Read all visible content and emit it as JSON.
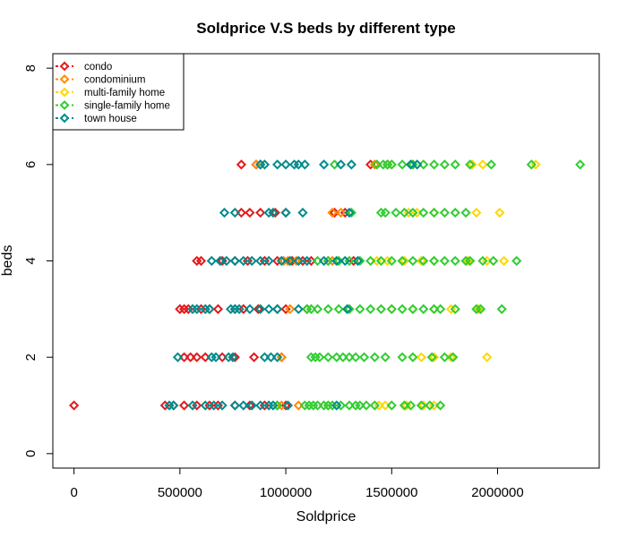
{
  "chart_data": {
    "type": "scatter",
    "title": "Soldprice V.S beds by different type",
    "xlabel": "Soldprice",
    "ylabel": "beds",
    "xlim": [
      -100000,
      2480000
    ],
    "ylim": [
      -0.3,
      8.3
    ],
    "x_ticks": [
      0,
      500000,
      1000000,
      1500000,
      2000000
    ],
    "x_tick_labels": [
      "0",
      "500000",
      "1000000",
      "1500000",
      "2000000"
    ],
    "y_ticks": [
      0,
      2,
      4,
      6,
      8
    ],
    "y_tick_labels": [
      "0",
      "2",
      "4",
      "6",
      "8"
    ],
    "grid": false,
    "legend_position": "top-left",
    "marker": "diamond-open",
    "series": [
      {
        "name": "condo",
        "color": "#e31a1c",
        "points": [
          [
            0,
            1
          ],
          [
            430000,
            1
          ],
          [
            470000,
            1
          ],
          [
            520000,
            1
          ],
          [
            580000,
            1
          ],
          [
            640000,
            1
          ],
          [
            680000,
            1
          ],
          [
            760000,
            1
          ],
          [
            830000,
            1
          ],
          [
            900000,
            1
          ],
          [
            960000,
            1
          ],
          [
            1000000,
            1
          ],
          [
            520000,
            2
          ],
          [
            550000,
            2
          ],
          [
            580000,
            2
          ],
          [
            620000,
            2
          ],
          [
            700000,
            2
          ],
          [
            760000,
            2
          ],
          [
            850000,
            2
          ],
          [
            980000,
            2
          ],
          [
            500000,
            3
          ],
          [
            520000,
            3
          ],
          [
            540000,
            3
          ],
          [
            600000,
            3
          ],
          [
            640000,
            3
          ],
          [
            680000,
            3
          ],
          [
            760000,
            3
          ],
          [
            800000,
            3
          ],
          [
            870000,
            3
          ],
          [
            960000,
            3
          ],
          [
            1000000,
            3
          ],
          [
            1100000,
            3
          ],
          [
            580000,
            4
          ],
          [
            600000,
            4
          ],
          [
            700000,
            4
          ],
          [
            760000,
            4
          ],
          [
            820000,
            4
          ],
          [
            900000,
            4
          ],
          [
            960000,
            4
          ],
          [
            1030000,
            4
          ],
          [
            1080000,
            4
          ],
          [
            1120000,
            4
          ],
          [
            1200000,
            4
          ],
          [
            1320000,
            4
          ],
          [
            790000,
            5
          ],
          [
            830000,
            5
          ],
          [
            880000,
            5
          ],
          [
            950000,
            5
          ],
          [
            1000000,
            5
          ],
          [
            1230000,
            5
          ],
          [
            1280000,
            5
          ],
          [
            790000,
            6
          ],
          [
            860000,
            6
          ],
          [
            880000,
            6
          ],
          [
            1400000,
            6
          ],
          [
            1480000,
            6
          ]
        ]
      },
      {
        "name": "condominium",
        "color": "#ff8c00",
        "points": [
          [
            980000,
            1
          ],
          [
            1060000,
            1
          ],
          [
            980000,
            2
          ],
          [
            1020000,
            3
          ],
          [
            990000,
            4
          ],
          [
            1010000,
            4
          ],
          [
            1050000,
            4
          ],
          [
            1220000,
            4
          ],
          [
            1220000,
            5
          ],
          [
            1260000,
            5
          ],
          [
            860000,
            6
          ],
          [
            880000,
            6
          ],
          [
            1420000,
            6
          ]
        ]
      },
      {
        "name": "multi-family home",
        "color": "#ffd700",
        "points": [
          [
            1200000,
            1
          ],
          [
            1440000,
            1
          ],
          [
            1470000,
            1
          ],
          [
            1570000,
            1
          ],
          [
            1650000,
            1
          ],
          [
            1700000,
            1
          ],
          [
            1600000,
            2
          ],
          [
            1640000,
            2
          ],
          [
            1700000,
            2
          ],
          [
            1780000,
            2
          ],
          [
            1950000,
            2
          ],
          [
            1500000,
            3
          ],
          [
            1600000,
            3
          ],
          [
            1700000,
            3
          ],
          [
            1780000,
            3
          ],
          [
            1910000,
            3
          ],
          [
            1430000,
            4
          ],
          [
            1480000,
            4
          ],
          [
            1560000,
            4
          ],
          [
            1640000,
            4
          ],
          [
            1700000,
            4
          ],
          [
            1860000,
            4
          ],
          [
            1950000,
            4
          ],
          [
            2030000,
            4
          ],
          [
            1580000,
            5
          ],
          [
            1620000,
            5
          ],
          [
            1700000,
            5
          ],
          [
            1900000,
            5
          ],
          [
            2010000,
            5
          ],
          [
            1500000,
            6
          ],
          [
            1600000,
            6
          ],
          [
            1880000,
            6
          ],
          [
            1930000,
            6
          ],
          [
            2180000,
            6
          ]
        ]
      },
      {
        "name": "single-family home",
        "color": "#32cd32",
        "points": [
          [
            960000,
            1
          ],
          [
            1090000,
            1
          ],
          [
            1110000,
            1
          ],
          [
            1130000,
            1
          ],
          [
            1150000,
            1
          ],
          [
            1180000,
            1
          ],
          [
            1200000,
            1
          ],
          [
            1220000,
            1
          ],
          [
            1260000,
            1
          ],
          [
            1300000,
            1
          ],
          [
            1330000,
            1
          ],
          [
            1350000,
            1
          ],
          [
            1380000,
            1
          ],
          [
            1420000,
            1
          ],
          [
            1500000,
            1
          ],
          [
            1560000,
            1
          ],
          [
            1590000,
            1
          ],
          [
            1640000,
            1
          ],
          [
            1680000,
            1
          ],
          [
            1730000,
            1
          ],
          [
            1120000,
            2
          ],
          [
            1140000,
            2
          ],
          [
            1160000,
            2
          ],
          [
            1200000,
            2
          ],
          [
            1240000,
            2
          ],
          [
            1270000,
            2
          ],
          [
            1300000,
            2
          ],
          [
            1330000,
            2
          ],
          [
            1370000,
            2
          ],
          [
            1420000,
            2
          ],
          [
            1470000,
            2
          ],
          [
            1550000,
            2
          ],
          [
            1600000,
            2
          ],
          [
            1690000,
            2
          ],
          [
            1750000,
            2
          ],
          [
            1790000,
            2
          ],
          [
            1100000,
            3
          ],
          [
            1120000,
            3
          ],
          [
            1150000,
            3
          ],
          [
            1200000,
            3
          ],
          [
            1250000,
            3
          ],
          [
            1300000,
            3
          ],
          [
            1350000,
            3
          ],
          [
            1400000,
            3
          ],
          [
            1450000,
            3
          ],
          [
            1500000,
            3
          ],
          [
            1550000,
            3
          ],
          [
            1600000,
            3
          ],
          [
            1650000,
            3
          ],
          [
            1700000,
            3
          ],
          [
            1730000,
            3
          ],
          [
            1800000,
            3
          ],
          [
            1900000,
            3
          ],
          [
            1920000,
            3
          ],
          [
            2020000,
            3
          ],
          [
            1150000,
            4
          ],
          [
            1200000,
            4
          ],
          [
            1250000,
            4
          ],
          [
            1300000,
            4
          ],
          [
            1350000,
            4
          ],
          [
            1400000,
            4
          ],
          [
            1450000,
            4
          ],
          [
            1500000,
            4
          ],
          [
            1550000,
            4
          ],
          [
            1600000,
            4
          ],
          [
            1650000,
            4
          ],
          [
            1700000,
            4
          ],
          [
            1750000,
            4
          ],
          [
            1800000,
            4
          ],
          [
            1850000,
            4
          ],
          [
            1870000,
            4
          ],
          [
            1930000,
            4
          ],
          [
            1980000,
            4
          ],
          [
            2090000,
            4
          ],
          [
            1310000,
            5
          ],
          [
            1450000,
            5
          ],
          [
            1470000,
            5
          ],
          [
            1520000,
            5
          ],
          [
            1560000,
            5
          ],
          [
            1600000,
            5
          ],
          [
            1650000,
            5
          ],
          [
            1700000,
            5
          ],
          [
            1750000,
            5
          ],
          [
            1800000,
            5
          ],
          [
            1850000,
            5
          ],
          [
            1230000,
            6
          ],
          [
            1430000,
            6
          ],
          [
            1460000,
            6
          ],
          [
            1480000,
            6
          ],
          [
            1500000,
            6
          ],
          [
            1550000,
            6
          ],
          [
            1600000,
            6
          ],
          [
            1650000,
            6
          ],
          [
            1700000,
            6
          ],
          [
            1750000,
            6
          ],
          [
            1800000,
            6
          ],
          [
            1870000,
            6
          ],
          [
            1970000,
            6
          ],
          [
            2160000,
            6
          ],
          [
            2390000,
            6
          ]
        ]
      },
      {
        "name": "town house",
        "color": "#008b8b",
        "points": [
          [
            450000,
            1
          ],
          [
            470000,
            1
          ],
          [
            560000,
            1
          ],
          [
            620000,
            1
          ],
          [
            660000,
            1
          ],
          [
            700000,
            1
          ],
          [
            760000,
            1
          ],
          [
            800000,
            1
          ],
          [
            840000,
            1
          ],
          [
            880000,
            1
          ],
          [
            920000,
            1
          ],
          [
            940000,
            1
          ],
          [
            1010000,
            1
          ],
          [
            1240000,
            1
          ],
          [
            490000,
            2
          ],
          [
            650000,
            2
          ],
          [
            670000,
            2
          ],
          [
            730000,
            2
          ],
          [
            750000,
            2
          ],
          [
            900000,
            2
          ],
          [
            930000,
            2
          ],
          [
            960000,
            2
          ],
          [
            560000,
            3
          ],
          [
            580000,
            3
          ],
          [
            620000,
            3
          ],
          [
            640000,
            3
          ],
          [
            740000,
            3
          ],
          [
            760000,
            3
          ],
          [
            780000,
            3
          ],
          [
            830000,
            3
          ],
          [
            880000,
            3
          ],
          [
            920000,
            3
          ],
          [
            960000,
            3
          ],
          [
            1060000,
            3
          ],
          [
            1290000,
            3
          ],
          [
            650000,
            4
          ],
          [
            690000,
            4
          ],
          [
            720000,
            4
          ],
          [
            760000,
            4
          ],
          [
            800000,
            4
          ],
          [
            840000,
            4
          ],
          [
            880000,
            4
          ],
          [
            920000,
            4
          ],
          [
            980000,
            4
          ],
          [
            1020000,
            4
          ],
          [
            1060000,
            4
          ],
          [
            1100000,
            4
          ],
          [
            1180000,
            4
          ],
          [
            1240000,
            4
          ],
          [
            1280000,
            4
          ],
          [
            1340000,
            4
          ],
          [
            710000,
            5
          ],
          [
            760000,
            5
          ],
          [
            920000,
            5
          ],
          [
            940000,
            5
          ],
          [
            1000000,
            5
          ],
          [
            1080000,
            5
          ],
          [
            1300000,
            5
          ],
          [
            880000,
            6
          ],
          [
            900000,
            6
          ],
          [
            960000,
            6
          ],
          [
            1000000,
            6
          ],
          [
            1040000,
            6
          ],
          [
            1060000,
            6
          ],
          [
            1090000,
            6
          ],
          [
            1180000,
            6
          ],
          [
            1260000,
            6
          ],
          [
            1310000,
            6
          ],
          [
            1590000,
            6
          ],
          [
            1620000,
            6
          ]
        ]
      }
    ]
  }
}
